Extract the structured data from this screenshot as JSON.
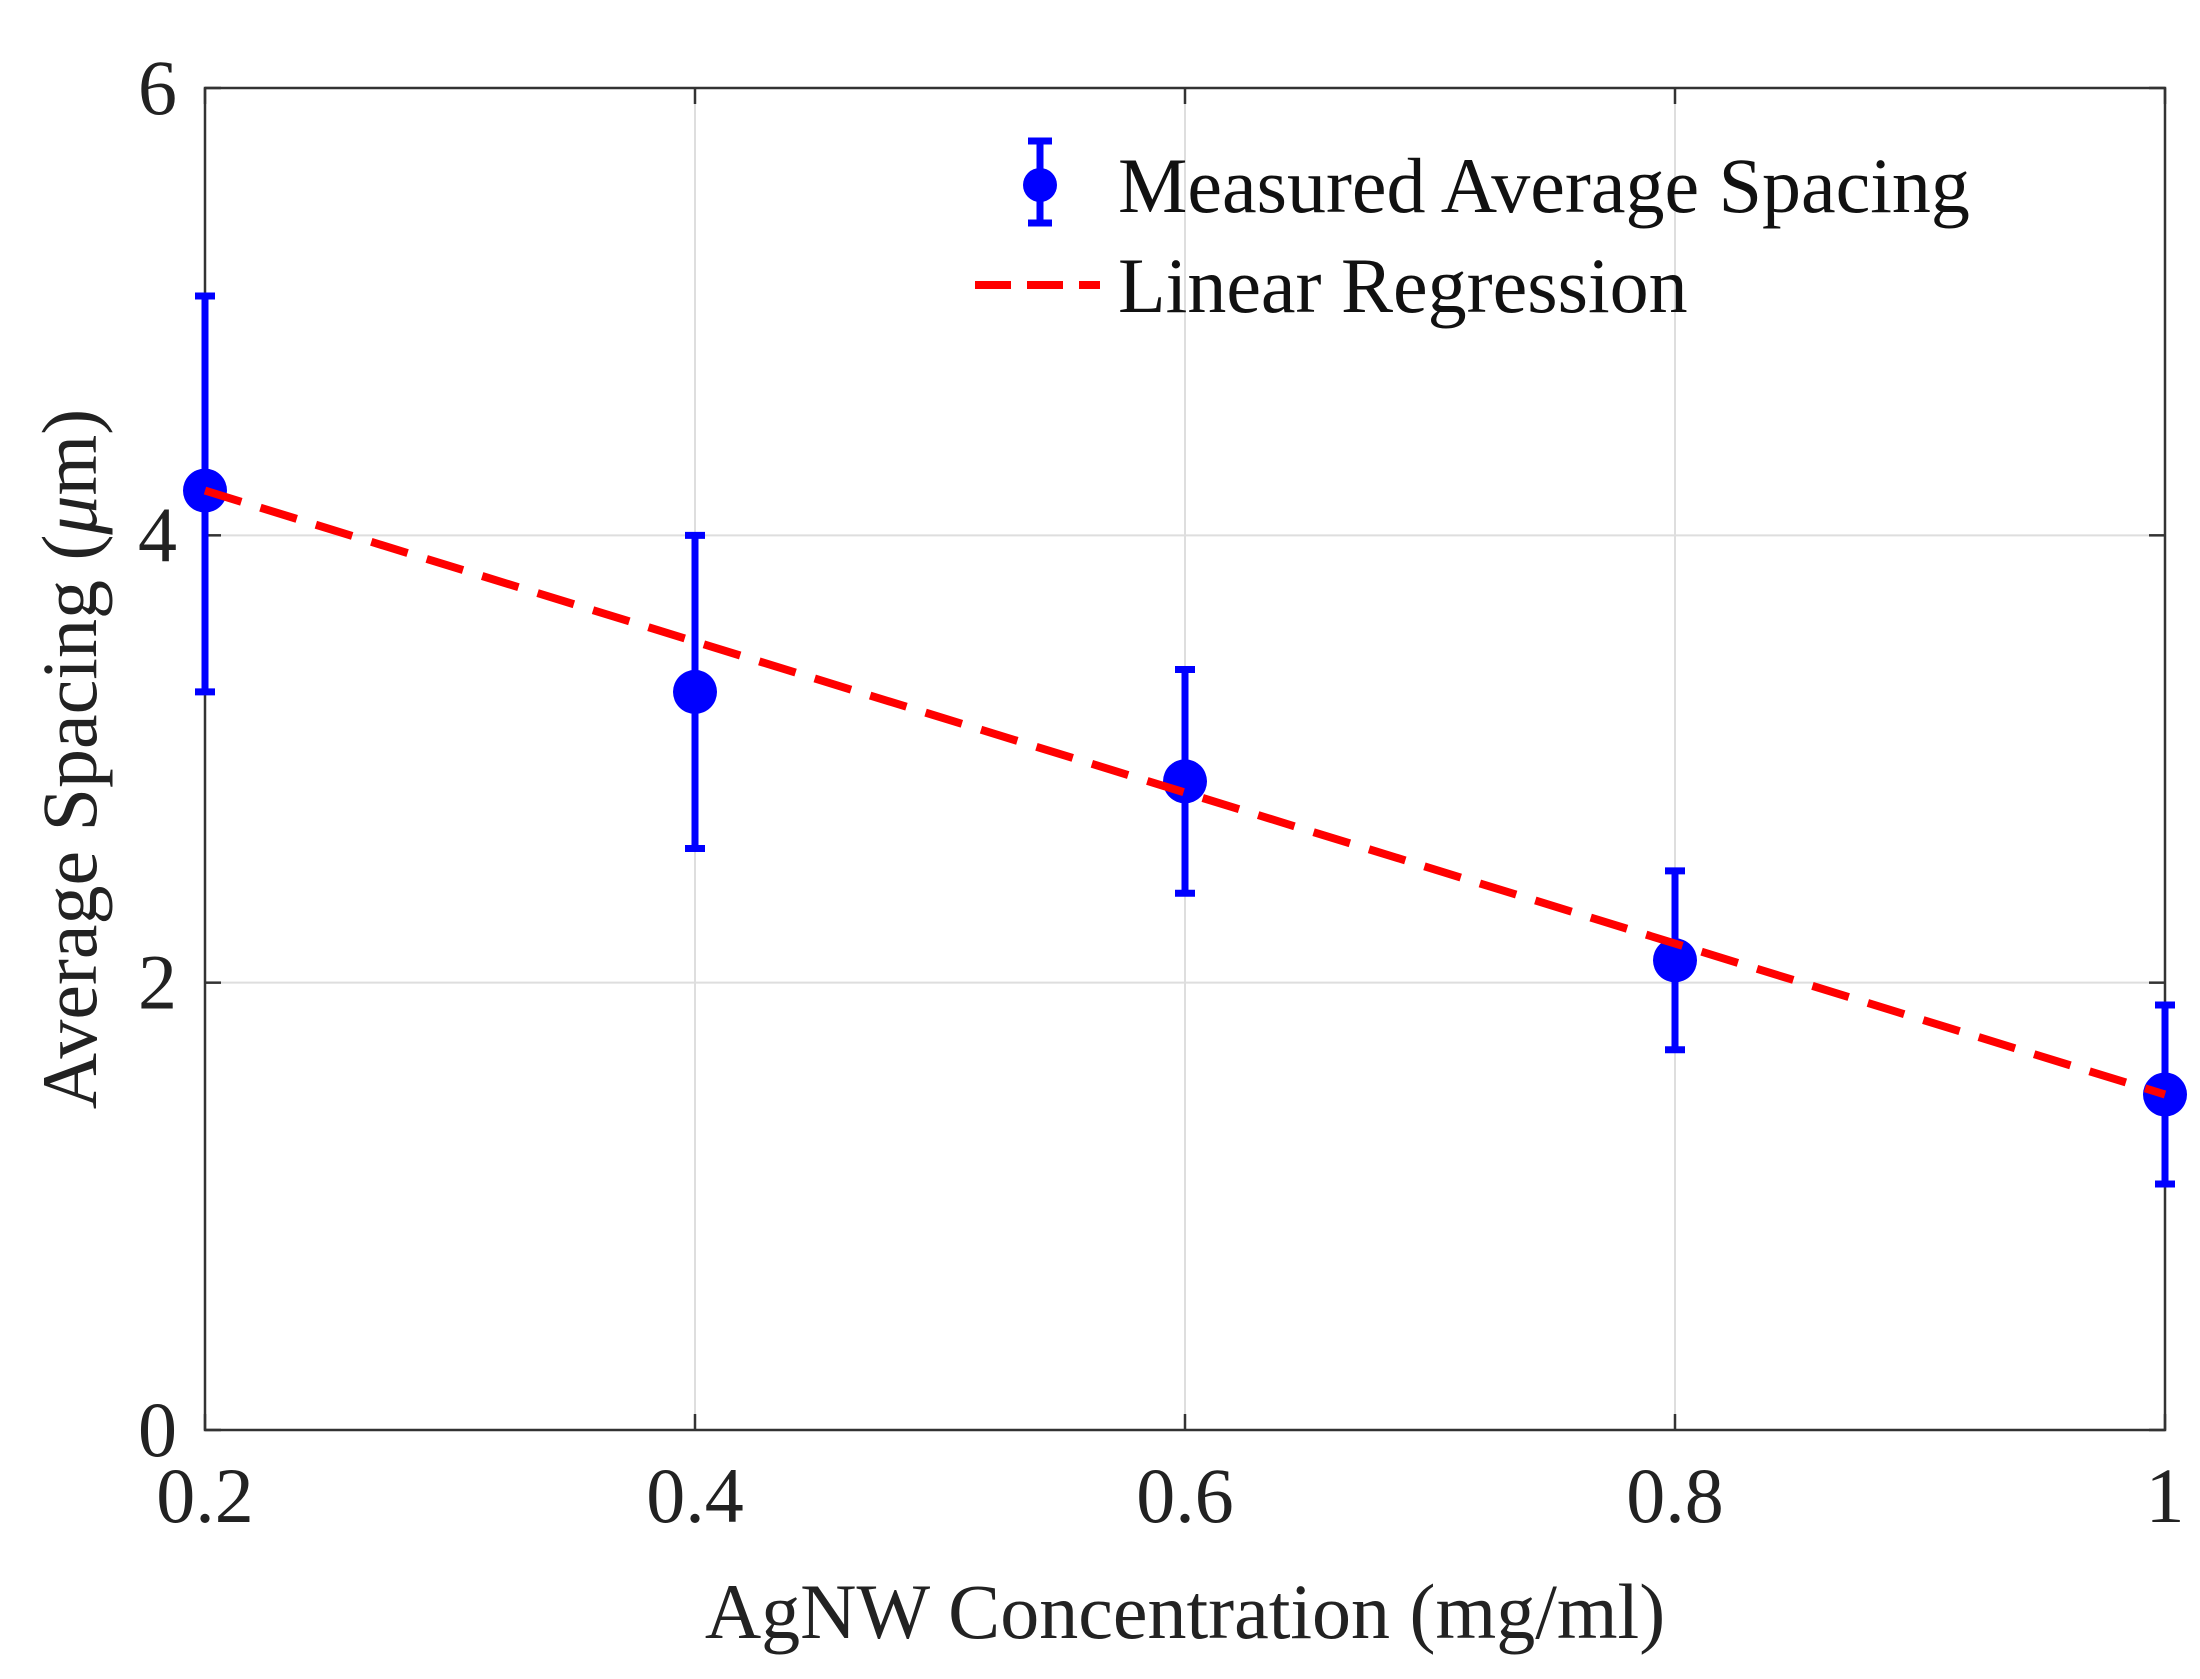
{
  "chart_data": {
    "type": "scatter",
    "title": "",
    "xlabel": "AgNW Concentration (mg/ml)",
    "ylabel_prefix": "Average Spacing (",
    "ylabel_mu": "μ",
    "ylabel_suffix": "m)",
    "xlim": [
      0.2,
      1.0
    ],
    "ylim": [
      0,
      6
    ],
    "xticks": [
      0.2,
      0.4,
      0.6,
      0.8,
      1.0
    ],
    "xtick_labels": [
      "0.2",
      "0.4",
      "0.6",
      "0.8",
      "1"
    ],
    "yticks": [
      0,
      2,
      4,
      6
    ],
    "ytick_labels": [
      "0",
      "2",
      "4",
      "6"
    ],
    "grid": true,
    "legend_position": "top-right",
    "series": [
      {
        "name": "Measured Average Spacing",
        "kind": "errorbar",
        "color": "#0000ff",
        "x": [
          0.2,
          0.4,
          0.6,
          0.8,
          1.0
        ],
        "y": [
          4.2,
          3.3,
          2.9,
          2.1,
          1.5
        ],
        "err_low": [
          3.3,
          2.6,
          2.4,
          1.7,
          1.1
        ],
        "err_high": [
          5.07,
          4.0,
          3.4,
          2.5,
          1.9
        ]
      },
      {
        "name": "Linear Regression",
        "kind": "line",
        "style": "dashed",
        "color": "#ff0000",
        "x": [
          0.2,
          1.0
        ],
        "y": [
          4.2,
          1.5
        ]
      }
    ]
  }
}
